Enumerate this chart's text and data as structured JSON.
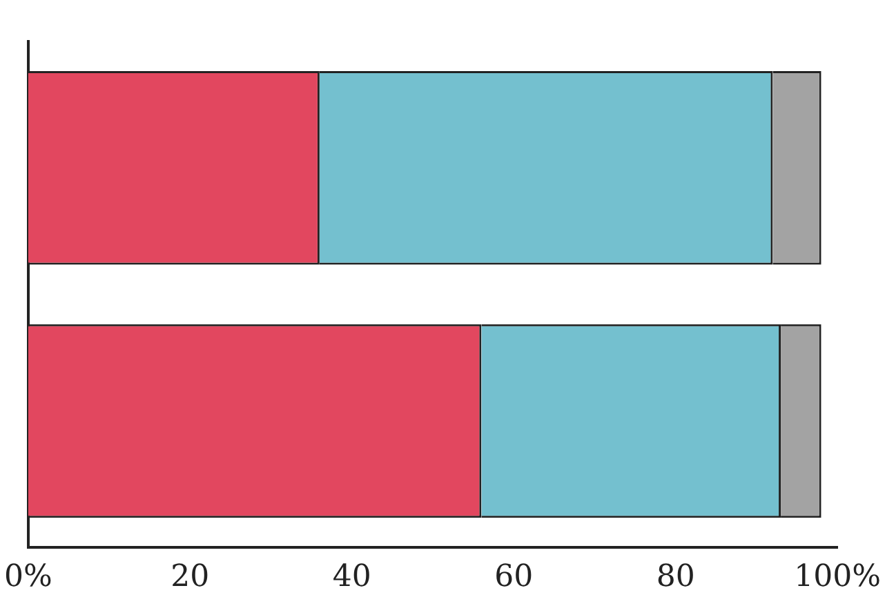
{
  "chart_data": {
    "type": "bar",
    "orientation": "horizontal",
    "stacked": true,
    "categories": [
      null,
      null
    ],
    "series": [
      {
        "color": "#e2475f",
        "values": [
          36,
          56
        ]
      },
      {
        "color": "#74c0cf",
        "values": [
          56,
          37
        ]
      },
      {
        "color": "#a3a3a3",
        "values": [
          6,
          5
        ]
      }
    ],
    "xlim": [
      0,
      100
    ],
    "xticks": [
      {
        "value": 0,
        "label": "0%"
      },
      20,
      40,
      60,
      80,
      {
        "value": 100,
        "label": "100%"
      }
    ],
    "grid": false,
    "legend": false
  }
}
